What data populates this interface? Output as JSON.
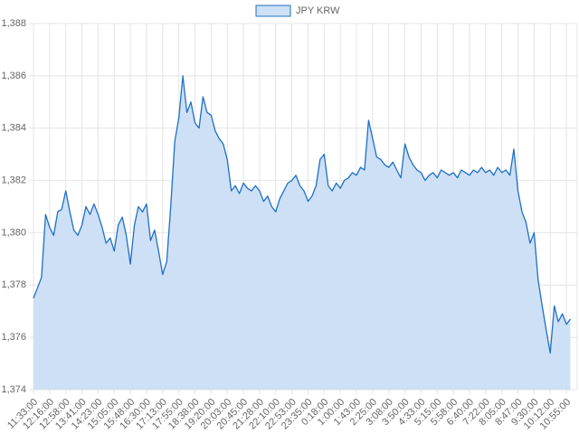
{
  "chart_data": {
    "type": "area",
    "categories": [
      "11:33:00",
      null,
      null,
      null,
      "12:16:00",
      null,
      null,
      null,
      "12:58:00",
      null,
      null,
      null,
      "13:41:00",
      null,
      null,
      null,
      "14:23:00",
      null,
      null,
      null,
      "15:05:00",
      null,
      null,
      null,
      "15:48:00",
      null,
      null,
      null,
      "16:30:00",
      null,
      null,
      null,
      "17:13:00",
      null,
      null,
      null,
      "17:55:00",
      null,
      null,
      null,
      "18:38:00",
      null,
      null,
      null,
      "19:20:00",
      null,
      null,
      null,
      "20:03:00",
      null,
      null,
      null,
      "20:45:00",
      null,
      null,
      null,
      "21:28:00",
      null,
      null,
      null,
      "22:10:00",
      null,
      null,
      null,
      "22:53:00",
      null,
      null,
      null,
      "23:35:00",
      null,
      null,
      null,
      "0:18:00",
      null,
      null,
      null,
      "1:00:00",
      null,
      null,
      null,
      "1:43:00",
      null,
      null,
      null,
      "2:25:00",
      null,
      null,
      null,
      "3:08:00",
      null,
      null,
      null,
      "3:50:00",
      null,
      null,
      null,
      "4:33:00",
      null,
      null,
      null,
      "5:15:00",
      null,
      null,
      null,
      "5:58:00",
      null,
      null,
      null,
      "6:40:00",
      null,
      null,
      null,
      "7:22:00",
      null,
      null,
      null,
      "8:05:00",
      null,
      null,
      null,
      "8:47:00",
      null,
      null,
      null,
      "9:30:00",
      null,
      null,
      null,
      "10:12:00",
      null,
      null,
      null,
      "10:55:00",
      null
    ],
    "series": [
      {
        "name": "JPY KRW",
        "color": "#1f6fc5",
        "fill": "#cde0f5",
        "values": [
          1377.5,
          1377.9,
          1378.3,
          1380.7,
          1380.2,
          1379.9,
          1380.8,
          1380.9,
          1381.6,
          1380.8,
          1380.1,
          1379.9,
          1380.3,
          1381.0,
          1380.7,
          1381.1,
          1380.7,
          1380.2,
          1379.6,
          1379.8,
          1379.3,
          1380.3,
          1380.6,
          1379.9,
          1378.8,
          1380.3,
          1381.0,
          1380.8,
          1381.1,
          1379.7,
          1380.1,
          1379.3,
          1378.4,
          1378.9,
          1381.0,
          1383.5,
          1384.4,
          1386.0,
          1384.6,
          1385.0,
          1384.2,
          1384.0,
          1385.2,
          1384.6,
          1384.5,
          1383.9,
          1383.6,
          1383.4,
          1382.8,
          1381.6,
          1381.8,
          1381.5,
          1381.9,
          1381.7,
          1381.6,
          1381.8,
          1381.6,
          1381.2,
          1381.4,
          1381.0,
          1380.8,
          1381.3,
          1381.6,
          1381.9,
          1382.0,
          1382.2,
          1381.8,
          1381.6,
          1381.2,
          1381.4,
          1381.8,
          1382.8,
          1383.0,
          1381.8,
          1381.6,
          1381.9,
          1381.7,
          1382.0,
          1382.1,
          1382.3,
          1382.2,
          1382.5,
          1382.4,
          1384.3,
          1383.6,
          1382.9,
          1382.8,
          1382.6,
          1382.5,
          1382.7,
          1382.4,
          1382.1,
          1383.4,
          1382.9,
          1382.6,
          1382.4,
          1382.3,
          1382.0,
          1382.2,
          1382.3,
          1382.1,
          1382.4,
          1382.3,
          1382.2,
          1382.3,
          1382.1,
          1382.4,
          1382.3,
          1382.2,
          1382.4,
          1382.3,
          1382.5,
          1382.3,
          1382.4,
          1382.2,
          1382.5,
          1382.3,
          1382.4,
          1382.2,
          1383.2,
          1381.6,
          1380.8,
          1380.4,
          1379.6,
          1380.0,
          1378.2,
          1377.2,
          1376.3,
          1375.4,
          1377.2,
          1376.6,
          1376.9,
          1376.5,
          1376.7
        ]
      }
    ],
    "ylim": [
      1374,
      1388
    ],
    "yticks": [
      {
        "value": 1374,
        "label": "1,374"
      },
      {
        "value": 1376,
        "label": "1,376"
      },
      {
        "value": 1378,
        "label": "1,378"
      },
      {
        "value": 1380,
        "label": "1,380"
      },
      {
        "value": 1382,
        "label": "1,382"
      },
      {
        "value": 1384,
        "label": "1,384"
      },
      {
        "value": 1386,
        "label": "1,386"
      },
      {
        "value": 1388,
        "label": "1,388"
      }
    ],
    "grid": true,
    "legend": "top"
  }
}
